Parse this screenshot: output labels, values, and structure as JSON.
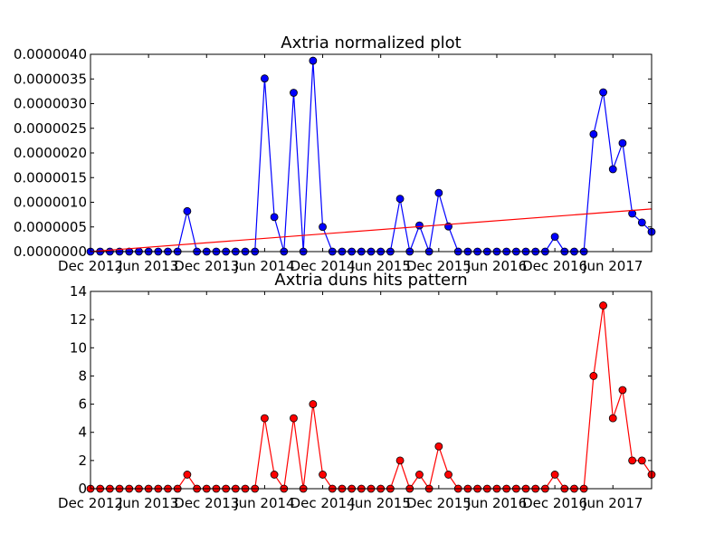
{
  "chart_data": [
    {
      "type": "line",
      "title": "Axtria normalized plot",
      "xlabel": "",
      "ylabel": "",
      "ylim": [
        0,
        4e-06
      ],
      "grid": false,
      "x_ticks": [
        "Dec 2012",
        "Jun 2013",
        "Dec 2013",
        "Jun 2014",
        "Dec 2014",
        "Jun 2015",
        "Dec 2015",
        "Jun 2016",
        "Dec 2016",
        "Jun 2017"
      ],
      "x_tick_months": [
        0,
        6,
        12,
        18,
        24,
        30,
        36,
        42,
        48,
        54
      ],
      "y_ticks": [
        "0.0000000",
        "0.0000005",
        "0.0000010",
        "0.0000015",
        "0.0000020",
        "0.0000025",
        "0.0000030",
        "0.0000035",
        "0.0000040"
      ],
      "series": [
        {
          "color": "#0000ff",
          "marker": "circle",
          "values": [
            0,
            0,
            0,
            0,
            0,
            0,
            0,
            0,
            0,
            0,
            8.2e-07,
            0,
            0,
            0,
            0,
            0,
            0,
            0,
            3.51e-06,
            7e-07,
            0,
            3.22e-06,
            0,
            3.87e-06,
            5e-07,
            0,
            0,
            0,
            0,
            0,
            0,
            0,
            1.07e-06,
            0,
            5.3e-07,
            0,
            1.19e-06,
            5.1e-07,
            0,
            0,
            0,
            0,
            0,
            0,
            0,
            0,
            0,
            0,
            3e-07,
            0,
            0,
            0,
            2.38e-06,
            3.23e-06,
            1.67e-06,
            2.2e-06,
            7.7e-07,
            5.9e-07,
            4e-07
          ]
        },
        {
          "color": "#ff0000",
          "marker": "none",
          "values": [
            0,
            8.64e-07
          ]
        }
      ]
    },
    {
      "type": "line",
      "title": "Axtria duns hits pattern",
      "xlabel": "",
      "ylabel": "",
      "ylim": [
        0,
        14
      ],
      "grid": false,
      "x_ticks": [
        "Dec 2012",
        "Jun 2013",
        "Dec 2013",
        "Jun 2014",
        "Dec 2014",
        "Jun 2015",
        "Dec 2015",
        "Jun 2016",
        "Dec 2016",
        "Jun 2017"
      ],
      "x_tick_months": [
        0,
        6,
        12,
        18,
        24,
        30,
        36,
        42,
        48,
        54
      ],
      "y_ticks": [
        "0",
        "2",
        "4",
        "6",
        "8",
        "10",
        "12",
        "14"
      ],
      "series": [
        {
          "color": "#ff0000",
          "marker": "circle",
          "values": [
            0,
            0,
            0,
            0,
            0,
            0,
            0,
            0,
            0,
            0,
            1,
            0,
            0,
            0,
            0,
            0,
            0,
            0,
            5,
            1,
            0,
            5,
            0,
            6,
            1,
            0,
            0,
            0,
            0,
            0,
            0,
            0,
            2,
            0,
            1,
            0,
            3,
            1,
            0,
            0,
            0,
            0,
            0,
            0,
            0,
            0,
            0,
            0,
            1,
            0,
            0,
            0,
            8,
            13,
            5,
            7,
            2,
            2,
            1
          ]
        }
      ]
    }
  ]
}
